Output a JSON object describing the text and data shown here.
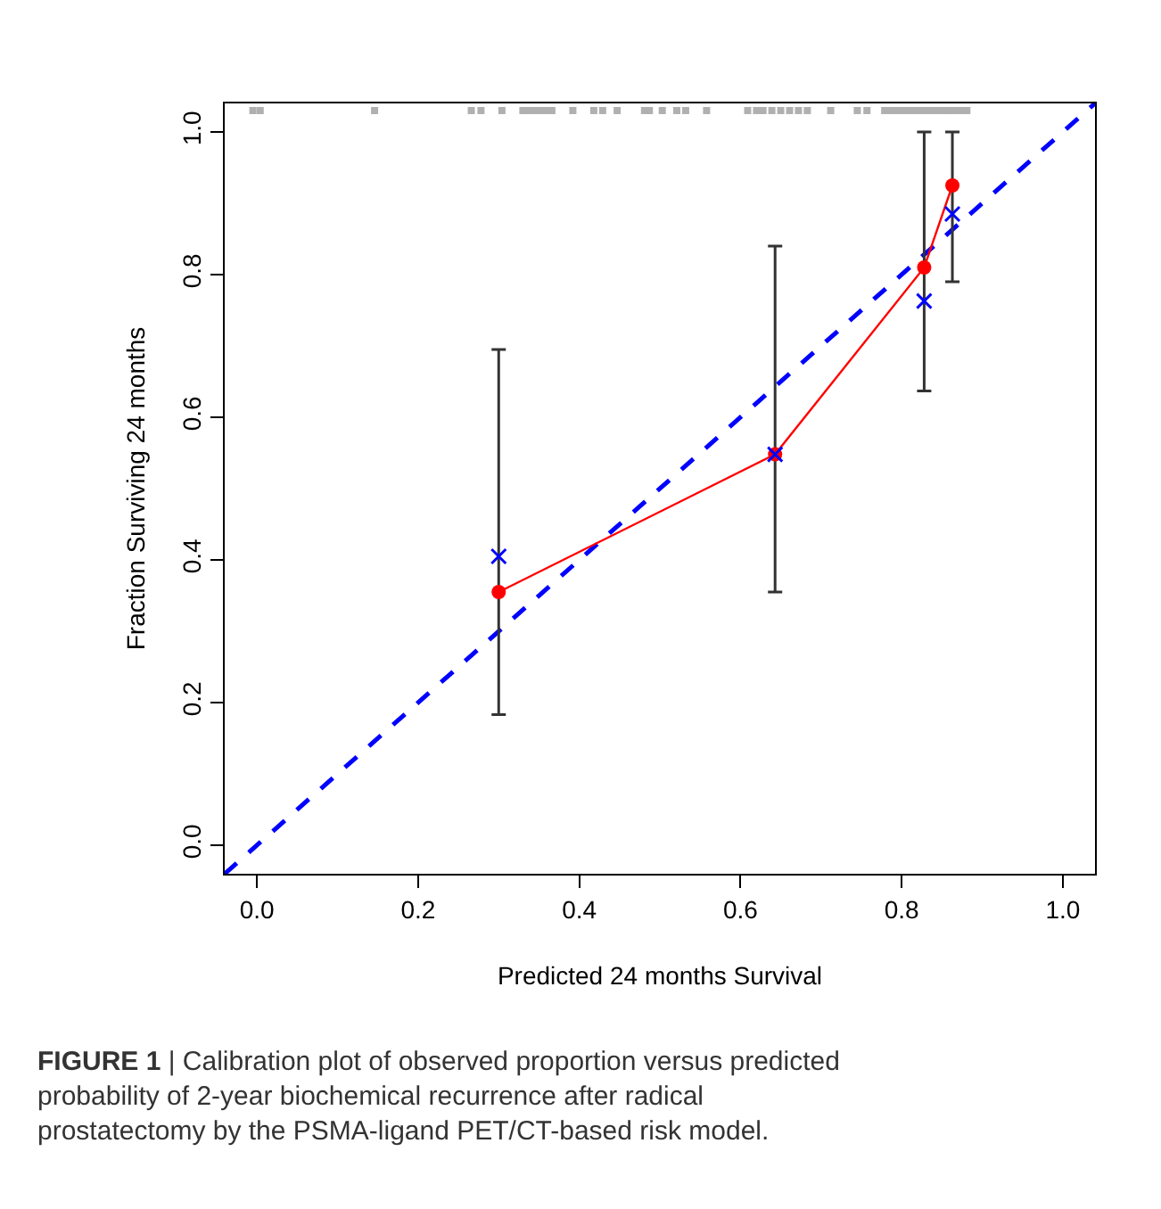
{
  "chart_data": {
    "type": "line",
    "xlabel": "Predicted 24 months Survival",
    "ylabel": "Fraction Surviving 24 months",
    "xlim": [
      -0.04,
      1.04
    ],
    "ylim": [
      -0.04,
      1.04
    ],
    "xticks": [
      {
        "value": 0,
        "label": "0.0"
      },
      0.2,
      0.4,
      0.6,
      0.8,
      {
        "value": 1,
        "label": "1.0"
      }
    ],
    "yticks": [
      {
        "value": 0,
        "label": "0.0"
      },
      0.2,
      0.4,
      0.6,
      0.8,
      {
        "value": 1,
        "label": "1.0"
      }
    ],
    "series": [
      {
        "type": "line",
        "color": "#0000ff",
        "line_style": "dashed",
        "marker": "none",
        "x": [
          -0.04,
          1.04
        ],
        "values": [
          -0.04,
          1.04
        ]
      },
      {
        "color": "#ff0000",
        "line_style": "solid",
        "marker": "circle",
        "x": [
          0.3,
          0.643,
          0.828,
          0.863
        ],
        "values": [
          0.355,
          0.548,
          0.81,
          0.925
        ],
        "errors": [
          [
            0.183,
            0.695
          ],
          [
            0.355,
            0.84
          ],
          [
            0.637,
            1.0
          ],
          [
            0.79,
            1.0
          ]
        ]
      },
      {
        "type": "scatter",
        "color": "#0000ff",
        "marker": "cross",
        "x": [
          0.3,
          0.643,
          0.828,
          0.863
        ],
        "values": [
          0.405,
          0.548,
          0.763,
          0.885
        ]
      },
      {
        "type": "scatter",
        "color": "#b0b0b0",
        "marker": "square",
        "x": [
          -0.005,
          0.004,
          0.146,
          0.266,
          0.278,
          0.304,
          0.33,
          0.337,
          0.344,
          0.35,
          0.355,
          0.359,
          0.366,
          0.392,
          0.418,
          0.429,
          0.447,
          0.481,
          0.487,
          0.503,
          0.521,
          0.532,
          0.558,
          0.609,
          0.62,
          0.628,
          0.639,
          0.65,
          0.661,
          0.672,
          0.683,
          0.712,
          0.745,
          0.757,
          0.779,
          0.786,
          0.793,
          0.801,
          0.808,
          0.815,
          0.823,
          0.83,
          0.837,
          0.845,
          0.852,
          0.859,
          0.867,
          0.874,
          0.881
        ],
        "values": [
          1.03,
          1.03,
          1.03,
          1.03,
          1.03,
          1.03,
          1.03,
          1.03,
          1.03,
          1.03,
          1.03,
          1.03,
          1.03,
          1.03,
          1.03,
          1.03,
          1.03,
          1.03,
          1.03,
          1.03,
          1.03,
          1.03,
          1.03,
          1.03,
          1.03,
          1.03,
          1.03,
          1.03,
          1.03,
          1.03,
          1.03,
          1.03,
          1.03,
          1.03,
          1.03,
          1.03,
          1.03,
          1.03,
          1.03,
          1.03,
          1.03,
          1.03,
          1.03,
          1.03,
          1.03,
          1.03,
          1.03,
          1.03,
          1.03
        ]
      }
    ],
    "annotations": [
      "FIGURE 1 | Calibration plot of observed proportion versus predicted probability of 2-year biochemical recurrence after radical prostatectomy by the PSMA-ligand PET/CT-based risk model."
    ]
  }
}
